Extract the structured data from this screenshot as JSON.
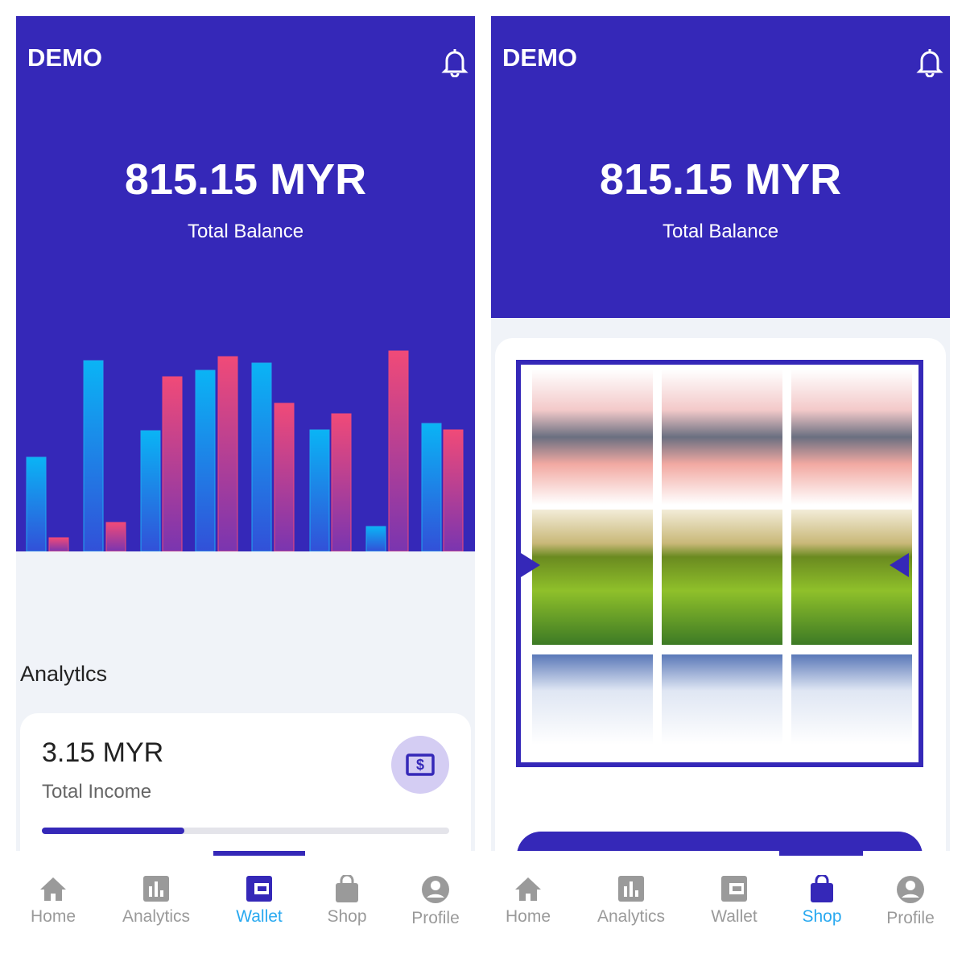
{
  "screens": [
    {
      "header": {
        "title": "DEMO"
      },
      "balance": {
        "amount": "815.15 MYR",
        "label": "Total Balance"
      },
      "section_title": "Analytlcs",
      "card": {
        "amount": "3.15 MYR",
        "label": "Total Income"
      },
      "nav": [
        "Home",
        "Analytics",
        "Wallet",
        "Shop",
        "Profile"
      ]
    },
    {
      "header": {
        "title": "DEMO"
      },
      "balance": {
        "amount": "815.15 MYR",
        "label": "Total Balance"
      },
      "nav": [
        "Home",
        "Analytics",
        "Wallet",
        "Shop",
        "Profile"
      ]
    }
  ]
}
